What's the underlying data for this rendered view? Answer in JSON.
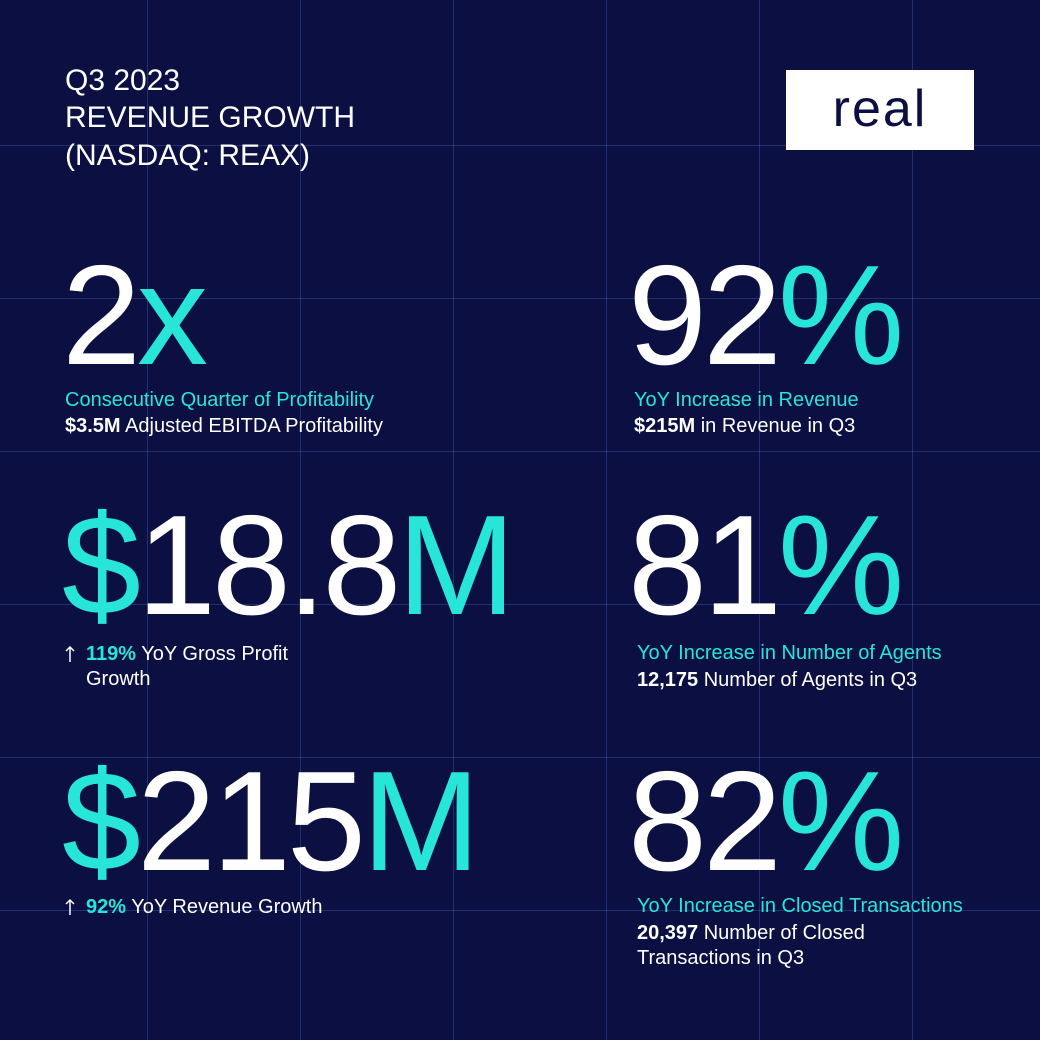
{
  "header": {
    "period": "Q3 2023",
    "title": "REVENUE GROWTH",
    "subtitle": "(NASDAQ: REAX)"
  },
  "logo": "real",
  "stats": [
    {
      "value": "2",
      "suffix": "x",
      "highlight": "Consecutive Quarter of Profitability",
      "bold": "$3.5M",
      "detail": "Adjusted EBITDA Profitability"
    },
    {
      "value": "92",
      "suffix": "%",
      "highlight": "YoY Increase in Revenue",
      "bold": "$215M",
      "detail": "in Revenue in Q3"
    },
    {
      "prefix": "$",
      "value": "18.8",
      "suffix": "M",
      "bold": "119%",
      "detail": "YoY Gross Profit",
      "detail2": "Growth"
    },
    {
      "value": "81",
      "suffix": "%",
      "highlight": "YoY Increase in Number of Agents",
      "bold": "12,175",
      "detail": "Number of Agents in Q3"
    },
    {
      "prefix": "$",
      "value": "215",
      "suffix": "M",
      "bold": "92%",
      "detail": "YoY Revenue Growth"
    },
    {
      "value": "82",
      "suffix": "%",
      "highlight": "YoY Increase in Closed Transactions",
      "bold": "20,397",
      "detail": "Number of Closed",
      "detail2": "Transactions in Q3"
    }
  ]
}
